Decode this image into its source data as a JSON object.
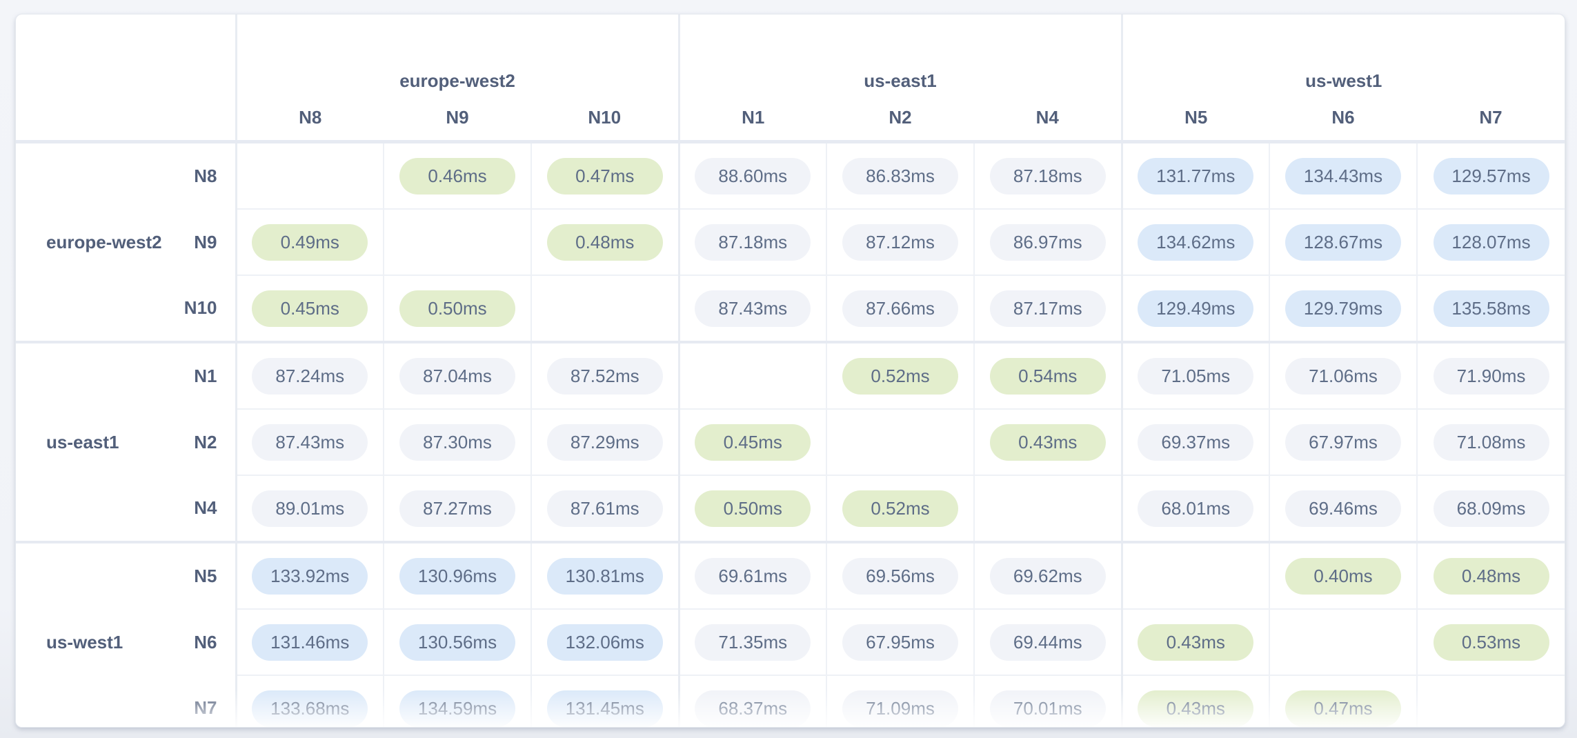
{
  "matrix": {
    "unit": "ms",
    "col_groups": [
      {
        "region": "europe-west2",
        "nodes": [
          "N8",
          "N9",
          "N10"
        ]
      },
      {
        "region": "us-east1",
        "nodes": [
          "N1",
          "N2",
          "N4"
        ]
      },
      {
        "region": "us-west1",
        "nodes": [
          "N5",
          "N6",
          "N7"
        ]
      }
    ],
    "row_groups": [
      {
        "region": "europe-west2",
        "rows": [
          {
            "node": "N8",
            "values": [
              null,
              "0.46ms",
              "0.47ms",
              "88.60ms",
              "86.83ms",
              "87.18ms",
              "131.77ms",
              "134.43ms",
              "129.57ms"
            ]
          },
          {
            "node": "N9",
            "values": [
              "0.49ms",
              null,
              "0.48ms",
              "87.18ms",
              "87.12ms",
              "86.97ms",
              "134.62ms",
              "128.67ms",
              "128.07ms"
            ]
          },
          {
            "node": "N10",
            "values": [
              "0.45ms",
              "0.50ms",
              null,
              "87.43ms",
              "87.66ms",
              "87.17ms",
              "129.49ms",
              "129.79ms",
              "135.58ms"
            ]
          }
        ]
      },
      {
        "region": "us-east1",
        "rows": [
          {
            "node": "N1",
            "values": [
              "87.24ms",
              "87.04ms",
              "87.52ms",
              null,
              "0.52ms",
              "0.54ms",
              "71.05ms",
              "71.06ms",
              "71.90ms"
            ]
          },
          {
            "node": "N2",
            "values": [
              "87.43ms",
              "87.30ms",
              "87.29ms",
              "0.45ms",
              null,
              "0.43ms",
              "69.37ms",
              "67.97ms",
              "71.08ms"
            ]
          },
          {
            "node": "N4",
            "values": [
              "89.01ms",
              "87.27ms",
              "87.61ms",
              "0.50ms",
              "0.52ms",
              null,
              "68.01ms",
              "69.46ms",
              "68.09ms"
            ]
          }
        ]
      },
      {
        "region": "us-west1",
        "rows": [
          {
            "node": "N5",
            "values": [
              "133.92ms",
              "130.96ms",
              "130.81ms",
              "69.61ms",
              "69.56ms",
              "69.62ms",
              null,
              "0.40ms",
              "0.48ms"
            ]
          },
          {
            "node": "N6",
            "values": [
              "131.46ms",
              "130.56ms",
              "132.06ms",
              "71.35ms",
              "67.95ms",
              "69.44ms",
              "0.43ms",
              null,
              "0.53ms"
            ]
          },
          {
            "node": "N7",
            "values": [
              "133.68ms",
              "134.59ms",
              "131.45ms",
              "68.37ms",
              "71.09ms",
              "70.01ms",
              "0.43ms",
              "0.47ms",
              null
            ]
          }
        ]
      }
    ]
  },
  "colors": {
    "pill_low_latency": "#e3eecd",
    "pill_medium_latency": "#f1f3f8",
    "pill_high_latency": "#dbe9f9",
    "value_text": "#5e6d87",
    "label_text": "#525f7a",
    "inner_border": "#eef1f6",
    "group_border": "#e8ecf2",
    "separator_border": "#e6eaf2",
    "card_border": "#e4e8ee"
  }
}
